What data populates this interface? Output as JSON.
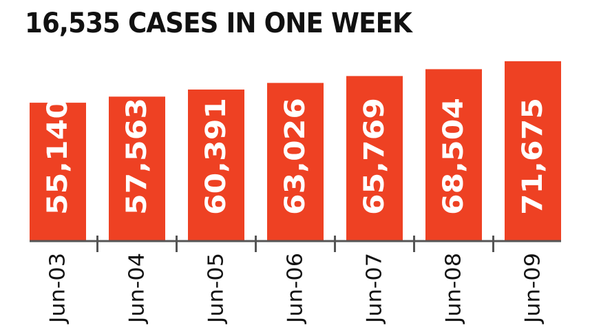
{
  "chart_data": {
    "type": "bar",
    "title": "16,535 CASES IN ONE WEEK",
    "categories": [
      "Jun-03",
      "Jun-04",
      "Jun-05",
      "Jun-06",
      "Jun-07",
      "Jun-08",
      "Jun-09"
    ],
    "values": [
      55140,
      57563,
      60391,
      63026,
      65769,
      68504,
      71675
    ],
    "value_labels": [
      "55,140",
      "57,563",
      "60,391",
      "63,026",
      "65,769",
      "68,504",
      "71,675"
    ],
    "ylim": [
      0,
      79600
    ],
    "xlabel": "",
    "ylabel": "",
    "grid": false,
    "legend": "none",
    "colors": {
      "bar": "#ee4123",
      "bar_label": "#ffffff",
      "axis": "#555555",
      "text": "#111111"
    }
  }
}
